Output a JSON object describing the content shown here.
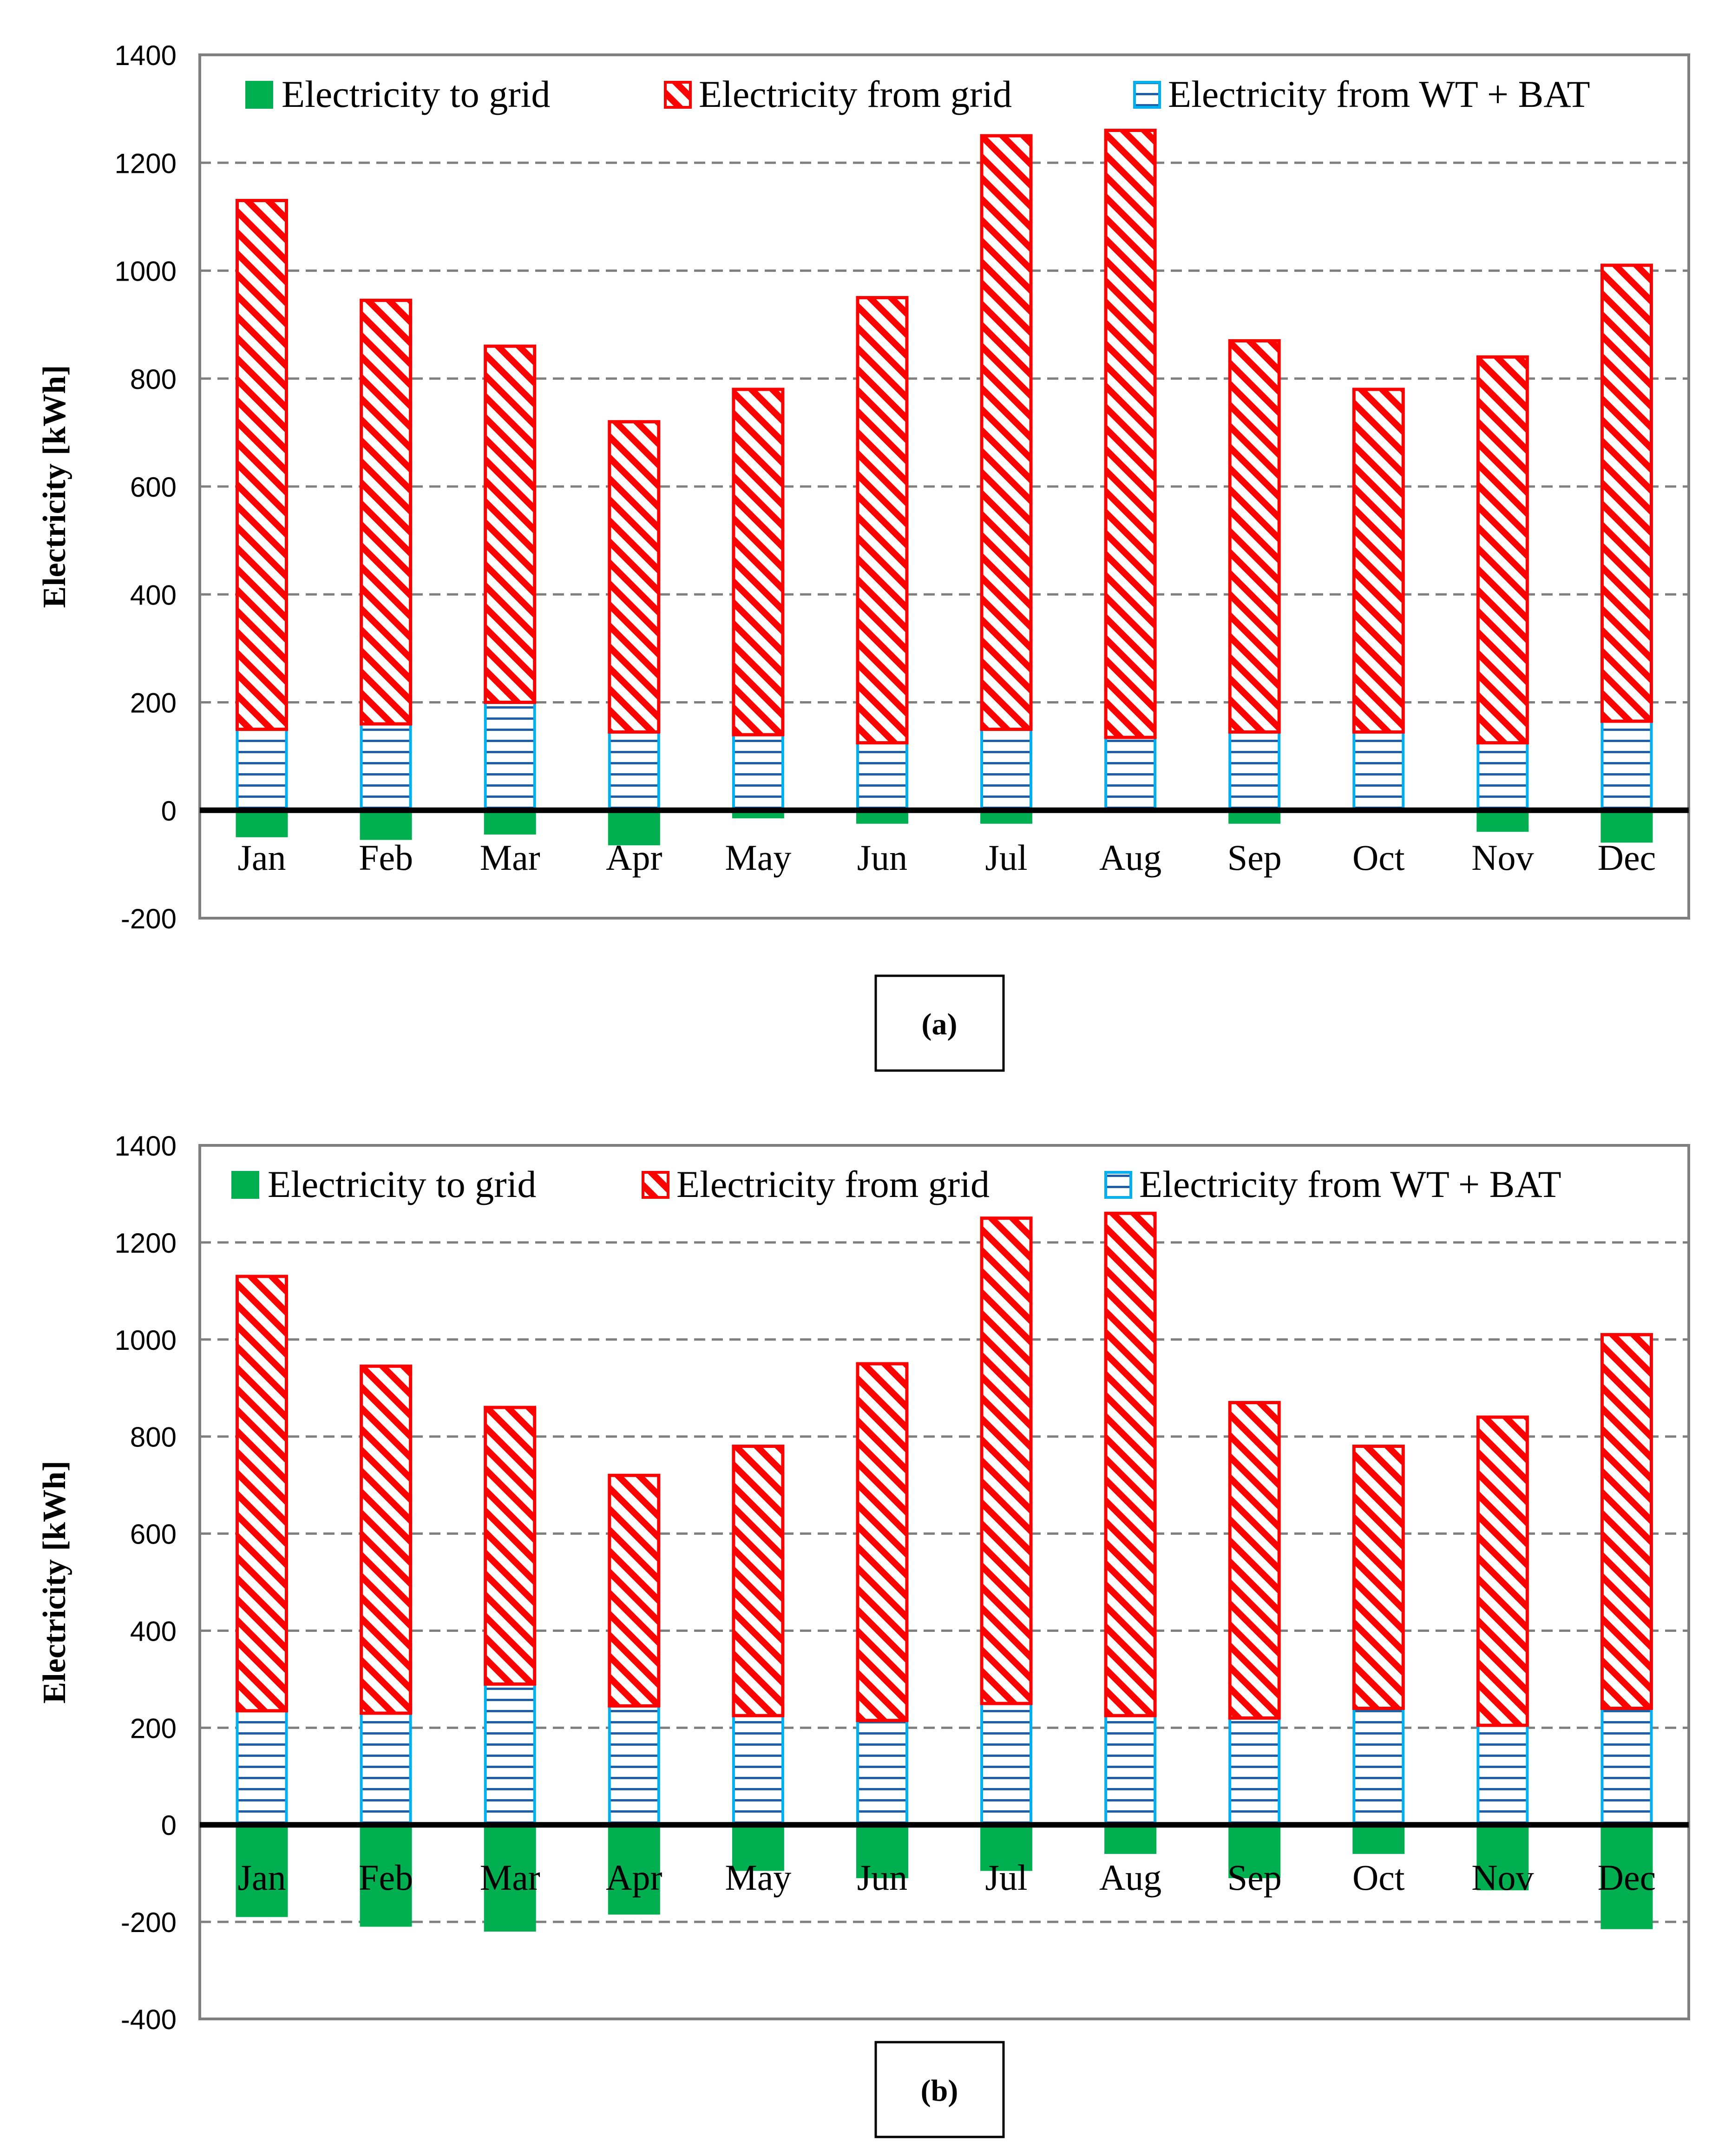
{
  "figure": {
    "colors": {
      "to_grid": "#00b050",
      "from_grid": "#ff0000",
      "from_wt_bat": "#00b0f0",
      "hatch_blue": "#1f5fa8",
      "grid_line": "#7f7f7f",
      "frame": "#7f7f7f"
    },
    "legend": {
      "to_grid": "Electricity to grid",
      "from_grid": "Electricity from grid",
      "from_wt_bat": "Electricity from WT + BAT"
    }
  },
  "chart_data": [
    {
      "type": "bar",
      "subtype": "stacked",
      "caption": "(a)",
      "ylabel": "Electricity [kWh]",
      "xlabel": "",
      "ylim": [
        -200,
        1400
      ],
      "yticks": [
        -200,
        0,
        200,
        400,
        600,
        800,
        1000,
        1200,
        1400
      ],
      "grid": true,
      "legend_position": "top",
      "categories": [
        "Jan",
        "Feb",
        "Mar",
        "Apr",
        "May",
        "Jun",
        "Jul",
        "Aug",
        "Sep",
        "Oct",
        "Nov",
        "Dec"
      ],
      "series": [
        {
          "name": "Electricity to grid",
          "key": "to_grid",
          "values": [
            -50,
            -55,
            -45,
            -65,
            -15,
            -25,
            -25,
            -5,
            -25,
            -3,
            -40,
            -60
          ]
        },
        {
          "name": "Electricity from grid",
          "key": "from_grid",
          "values": [
            980,
            785,
            660,
            575,
            640,
            825,
            1100,
            1125,
            725,
            635,
            715,
            845
          ]
        },
        {
          "name": "Electricity from WT + BAT",
          "key": "from_wt_bat",
          "values": [
            150,
            160,
            200,
            145,
            140,
            125,
            150,
            135,
            145,
            145,
            125,
            165
          ]
        }
      ]
    },
    {
      "type": "bar",
      "subtype": "stacked",
      "caption": "(b)",
      "ylabel": "Electricity [kWh]",
      "xlabel": "",
      "ylim": [
        -400,
        1400
      ],
      "yticks": [
        -400,
        -200,
        0,
        200,
        400,
        600,
        800,
        1000,
        1200,
        1400
      ],
      "grid": true,
      "legend_position": "top",
      "categories": [
        "Jan",
        "Feb",
        "Mar",
        "Apr",
        "May",
        "Jun",
        "Jul",
        "Aug",
        "Sep",
        "Oct",
        "Nov",
        "Dec"
      ],
      "series": [
        {
          "name": "Electricity to grid",
          "key": "to_grid",
          "values": [
            -190,
            -210,
            -220,
            -185,
            -95,
            -110,
            -95,
            -60,
            -110,
            -60,
            -135,
            -215
          ]
        },
        {
          "name": "Electricity from grid",
          "key": "from_grid",
          "values": [
            895,
            715,
            570,
            475,
            555,
            735,
            1000,
            1035,
            650,
            540,
            635,
            770
          ]
        },
        {
          "name": "Electricity from WT + BAT",
          "key": "from_wt_bat",
          "values": [
            235,
            230,
            290,
            245,
            225,
            215,
            250,
            225,
            220,
            240,
            205,
            240
          ]
        }
      ]
    }
  ]
}
